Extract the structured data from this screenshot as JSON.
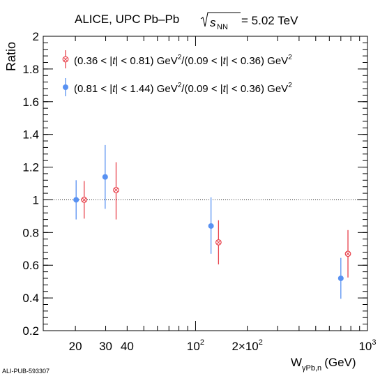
{
  "chart_data": {
    "type": "scatter",
    "title": {
      "prefix": "ALICE, UPC Pb–Pb",
      "energy_symbol": "s",
      "energy_subscript": "NN",
      "energy_value": "= 5.02 TeV"
    },
    "xlabel": {
      "main": "W",
      "sub": "γPb,n",
      "unit": "(GeV)"
    },
    "ylabel": "Ratio",
    "xscale": "log",
    "xlim": [
      13,
      1000
    ],
    "ylim": [
      0.2,
      2.0
    ],
    "y_ticks": [
      "0.2",
      "0.4",
      "0.6",
      "0.8",
      "1",
      "1.2",
      "1.4",
      "1.6",
      "1.8",
      "2"
    ],
    "x_tick_labels": [
      {
        "x": 20,
        "text": "20"
      },
      {
        "x": 30,
        "text": "30"
      },
      {
        "x": 40,
        "text": "40"
      },
      {
        "x": 100,
        "base": "10",
        "exp": "2"
      },
      {
        "x": 200,
        "base": "2×10",
        "exp": "2"
      },
      {
        "x": 1000,
        "base": "10",
        "exp": "3"
      }
    ],
    "reference_line": 1.0,
    "legend_position": "top-left",
    "series": [
      {
        "name": "(0.36 < |t| < 0.81) GeV²/(0.09 < |t| < 0.36) GeV²",
        "legend": {
          "a": "(0.36 < |",
          "t1": "t",
          "b": "| < 0.81) GeV",
          "sup1": "2",
          "c": "/(0.09 < |",
          "t2": "t",
          "d": "| < 0.36) GeV",
          "sup2": "2"
        },
        "color": "#e8414b",
        "marker": "open-cross-circle",
        "points": [
          {
            "x": 22.5,
            "y": 1.0,
            "err_low": 0.115,
            "err_high": 0.115
          },
          {
            "x": 34.5,
            "y": 1.06,
            "err_low": 0.18,
            "err_high": 0.17
          },
          {
            "x": 136,
            "y": 0.74,
            "err_low": 0.135,
            "err_high": 0.135
          },
          {
            "x": 770,
            "y": 0.67,
            "err_low": 0.145,
            "err_high": 0.145
          }
        ]
      },
      {
        "name": "(0.81 < |t| < 1.44) GeV²/(0.09 < |t| < 0.36) GeV²",
        "legend": {
          "a": "(0.81 < |",
          "t1": "t",
          "b": "| < 1.44) GeV",
          "sup1": "2",
          "c": "/(0.09 < |",
          "t2": "t",
          "d": "| < 0.36) GeV",
          "sup2": "2"
        },
        "color": "#5891f2",
        "marker": "filled-circle",
        "points": [
          {
            "x": 20.2,
            "y": 1.0,
            "err_low": 0.12,
            "err_high": 0.12
          },
          {
            "x": 29.8,
            "y": 1.14,
            "err_low": 0.195,
            "err_high": 0.195
          },
          {
            "x": 123,
            "y": 0.84,
            "err_low": 0.17,
            "err_high": 0.175
          },
          {
            "x": 700,
            "y": 0.52,
            "err_low": 0.125,
            "err_high": 0.125
          }
        ]
      }
    ]
  },
  "watermark": "ALI-PUB-593307"
}
